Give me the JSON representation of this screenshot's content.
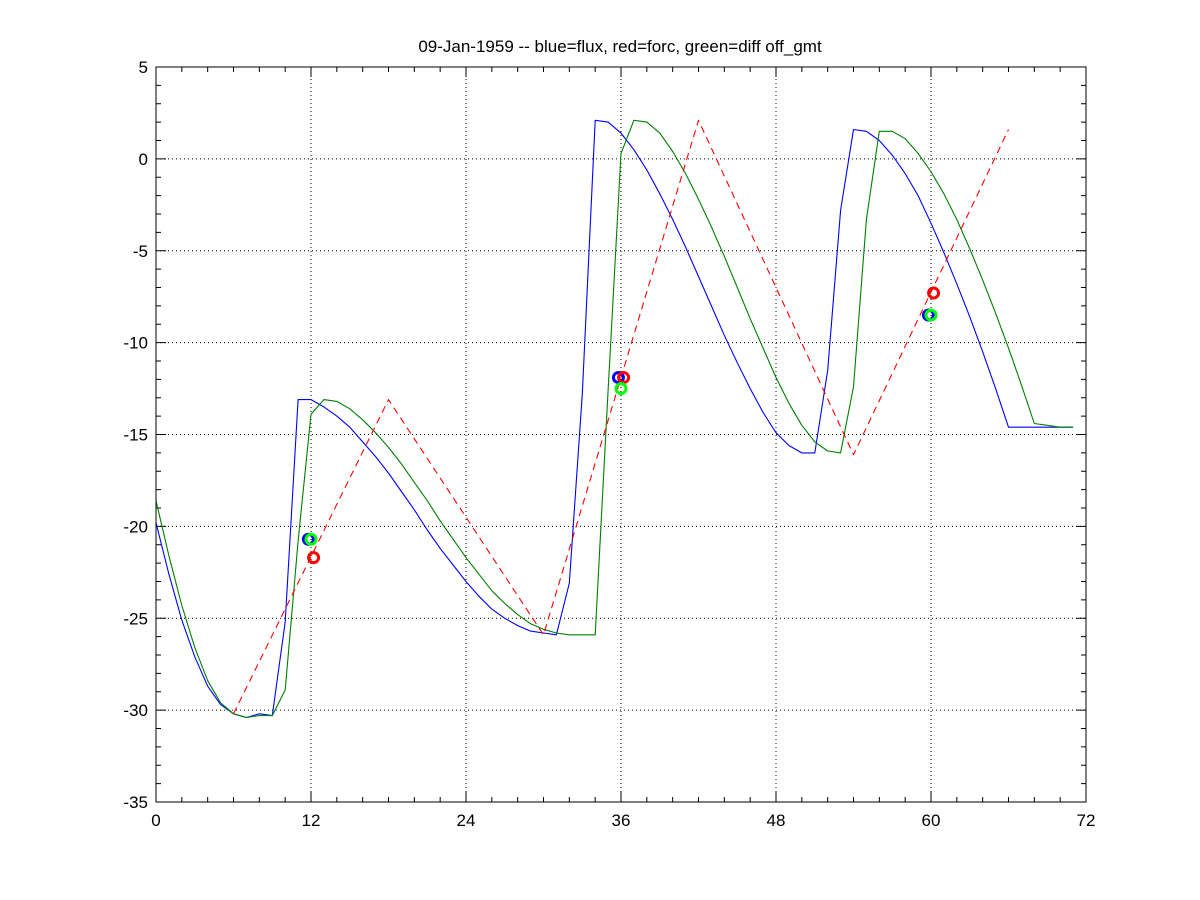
{
  "chart_data": {
    "type": "line",
    "title": "09-Jan-1959 -- blue=flux, red=forc, green=diff off_gmt",
    "xlabel": "",
    "ylabel": "",
    "xlim": [
      0,
      72
    ],
    "ylim": [
      -35,
      5
    ],
    "xticks": [
      0,
      12,
      24,
      36,
      48,
      60,
      72
    ],
    "yticks": [
      5,
      0,
      -5,
      -10,
      -15,
      -20,
      -25,
      -30,
      -35
    ],
    "x_minor_step": 2,
    "y_minor_step": 1,
    "grid": true,
    "series": [
      {
        "color": "#0000ff",
        "style": "solid",
        "x": [
          0,
          1,
          2,
          3,
          4,
          5,
          6,
          7,
          8,
          9,
          10,
          11,
          12,
          13,
          14,
          15,
          16,
          17,
          18,
          19,
          20,
          21,
          22,
          23,
          24,
          25,
          26,
          27,
          28,
          29,
          30,
          31,
          32,
          33,
          34,
          35,
          36,
          37,
          38,
          39,
          40,
          41,
          42,
          43,
          44,
          45,
          46,
          47,
          48,
          49,
          50,
          51,
          52,
          53,
          54,
          55,
          56,
          57,
          58,
          59,
          60,
          61,
          62,
          63,
          64,
          65,
          66,
          67,
          68,
          69,
          70,
          71
        ],
        "y": [
          -19.8,
          -22.6,
          -25.1,
          -27.1,
          -28.7,
          -29.7,
          -30.2,
          -30.4,
          -30.2,
          -30.3,
          -25.2,
          -13.1,
          -13.1,
          -13.5,
          -14.0,
          -14.6,
          -15.4,
          -16.2,
          -17.1,
          -18.1,
          -19.1,
          -20.2,
          -21.2,
          -22.1,
          -23.0,
          -23.8,
          -24.5,
          -25.0,
          -25.4,
          -25.7,
          -25.8,
          -25.9,
          -23.1,
          -12.8,
          2.1,
          2.0,
          1.4,
          0.5,
          -0.6,
          -1.9,
          -3.3,
          -4.8,
          -6.4,
          -8.0,
          -9.6,
          -11.1,
          -12.5,
          -13.8,
          -14.9,
          -15.6,
          -16.0,
          -16.0,
          -11.5,
          -2.8,
          1.6,
          1.5,
          1.0,
          0.2,
          -0.8,
          -2.0,
          -3.5,
          -5.1,
          -6.8,
          -8.6,
          -10.5,
          -12.5,
          -14.6,
          -14.6,
          -14.6,
          -14.6,
          -14.6,
          -14.6
        ]
      },
      {
        "color": "#007f00",
        "style": "solid",
        "x": [
          0,
          1,
          2,
          3,
          4,
          5,
          6,
          7,
          8,
          9,
          10,
          11,
          12,
          13,
          14,
          15,
          16,
          17,
          18,
          19,
          20,
          21,
          22,
          23,
          24,
          25,
          26,
          27,
          28,
          29,
          30,
          31,
          32,
          33,
          34,
          35,
          36,
          37,
          38,
          39,
          40,
          41,
          42,
          43,
          44,
          45,
          46,
          47,
          48,
          49,
          50,
          51,
          52,
          53,
          54,
          55,
          56,
          57,
          58,
          59,
          60,
          61,
          62,
          63,
          64,
          65,
          66,
          67,
          68,
          69,
          70,
          71
        ],
        "y": [
          -18.6,
          -21.6,
          -24.3,
          -26.6,
          -28.4,
          -29.6,
          -30.2,
          -30.4,
          -30.3,
          -30.3,
          -28.9,
          -20.8,
          -13.9,
          -13.1,
          -13.2,
          -13.6,
          -14.2,
          -14.9,
          -15.7,
          -16.6,
          -17.6,
          -18.6,
          -19.7,
          -20.7,
          -21.7,
          -22.6,
          -23.5,
          -24.2,
          -24.8,
          -25.3,
          -25.6,
          -25.8,
          -25.9,
          -25.9,
          -25.9,
          -12.6,
          0.3,
          2.1,
          2.0,
          1.4,
          0.4,
          -0.8,
          -2.2,
          -3.7,
          -5.3,
          -7.0,
          -8.7,
          -10.3,
          -11.9,
          -13.3,
          -14.5,
          -15.4,
          -15.9,
          -16.0,
          -12.4,
          -3.3,
          1.5,
          1.5,
          1.1,
          0.3,
          -0.7,
          -1.9,
          -3.3,
          -4.9,
          -6.6,
          -8.4,
          -10.3,
          -12.3,
          -14.4,
          -14.5,
          -14.6,
          -14.6
        ]
      },
      {
        "color": "#ff0000",
        "style": "dashed",
        "x": [
          6,
          18,
          30,
          42,
          54,
          66
        ],
        "y": [
          -30.2,
          -13.1,
          -25.9,
          2.1,
          -16.1,
          1.6
        ]
      }
    ],
    "markers": [
      {
        "color": "#0000ff",
        "x": 11.8,
        "y": -20.7
      },
      {
        "color": "#00ff00",
        "x": 12.0,
        "y": -20.7
      },
      {
        "color": "#ff0000",
        "x": 12.2,
        "y": -21.7
      },
      {
        "color": "#0000ff",
        "x": 35.8,
        "y": -11.9
      },
      {
        "color": "#ff0000",
        "x": 36.2,
        "y": -11.9
      },
      {
        "color": "#00ff00",
        "x": 36.0,
        "y": -12.5
      },
      {
        "color": "#0000ff",
        "x": 59.8,
        "y": -8.5
      },
      {
        "color": "#00ff00",
        "x": 60.0,
        "y": -8.5
      },
      {
        "color": "#ff0000",
        "x": 60.2,
        "y": -7.3
      }
    ]
  }
}
